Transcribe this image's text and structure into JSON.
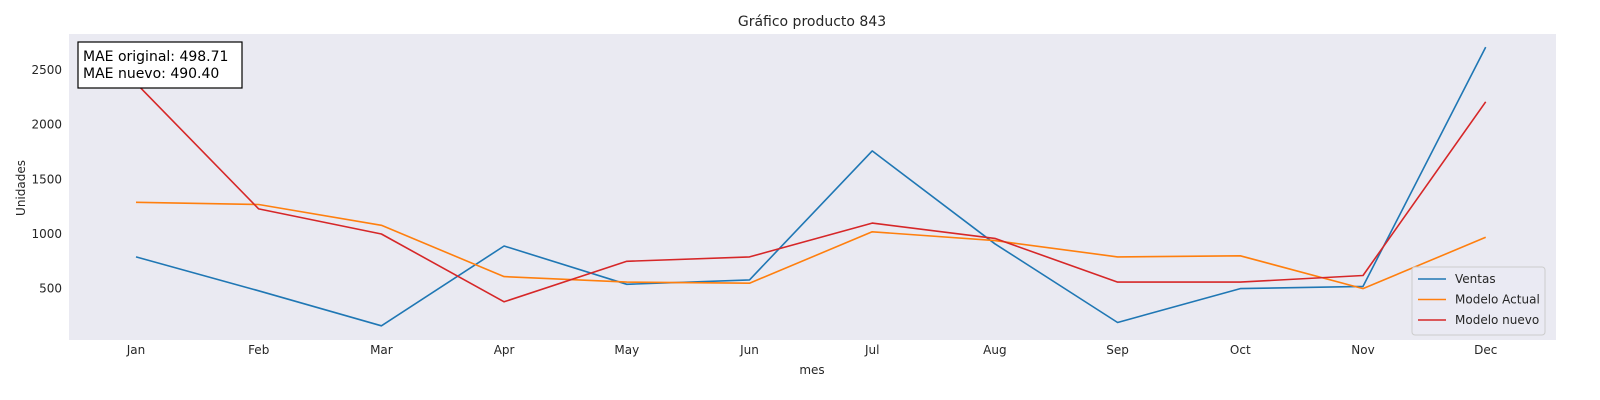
{
  "chart_data": {
    "type": "line",
    "title": "Gráfico producto 843",
    "xlabel": "mes",
    "ylabel": "Unidades",
    "categories": [
      "Jan",
      "Feb",
      "Mar",
      "Apr",
      "May",
      "Jun",
      "Jul",
      "Aug",
      "Sep",
      "Oct",
      "Nov",
      "Dec"
    ],
    "ylim": [
      30,
      2830
    ],
    "yticks": [
      500,
      1000,
      1500,
      2000,
      2500
    ],
    "grid": false,
    "background": "#eaeaf2",
    "legend_position": "lower-right",
    "series": [
      {
        "name": "Ventas",
        "color": "#1f77b4",
        "values": [
          790,
          480,
          160,
          890,
          540,
          580,
          1760,
          910,
          190,
          500,
          520,
          2710
        ]
      },
      {
        "name": "Modelo Actual",
        "color": "#ff7f0e",
        "values": [
          1290,
          1270,
          1080,
          610,
          560,
          550,
          1020,
          940,
          790,
          800,
          500,
          970
        ]
      },
      {
        "name": "Modelo nuevo",
        "color": "#d62728",
        "values": [
          2380,
          1230,
          1000,
          380,
          750,
          790,
          1100,
          960,
          560,
          560,
          620,
          2210
        ]
      }
    ],
    "annotation": [
      "MAE original: 498.71",
      "MAE nuevo: 490.40"
    ]
  }
}
